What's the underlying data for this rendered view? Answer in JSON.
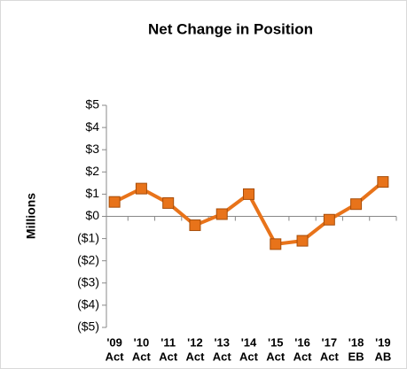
{
  "chart_data": {
    "type": "line",
    "title": "Net Change in Position",
    "y_label": "Millions",
    "categories": [
      [
        "'09",
        "Act"
      ],
      [
        "'10",
        "Act"
      ],
      [
        "'11",
        "Act"
      ],
      [
        "'12",
        "Act"
      ],
      [
        "'13",
        "Act"
      ],
      [
        "'14",
        "Act"
      ],
      [
        "'15",
        "Act"
      ],
      [
        "'16",
        "Act"
      ],
      [
        "'17",
        "Act"
      ],
      [
        "'18",
        "EB"
      ],
      [
        "'19",
        "AB"
      ]
    ],
    "series": [
      {
        "name": "Net Change",
        "color": "#e8731a",
        "values": [
          0.65,
          1.25,
          0.6,
          -0.4,
          0.1,
          1.0,
          -1.25,
          -1.1,
          -0.15,
          0.55,
          1.55
        ]
      }
    ],
    "ylim": [
      -5,
      5
    ],
    "yticks": [
      {
        "value": -5,
        "label": "($5)"
      },
      {
        "value": -4,
        "label": "($4)"
      },
      {
        "value": -3,
        "label": "($3)"
      },
      {
        "value": -2,
        "label": "($2)"
      },
      {
        "value": -1,
        "label": "($1)"
      },
      {
        "value": 0,
        "label": "$0"
      },
      {
        "value": 1,
        "label": "$1"
      },
      {
        "value": 2,
        "label": "$2"
      },
      {
        "value": 3,
        "label": "$3"
      },
      {
        "value": 4,
        "label": "$4"
      },
      {
        "value": 5,
        "label": "$5"
      }
    ]
  }
}
